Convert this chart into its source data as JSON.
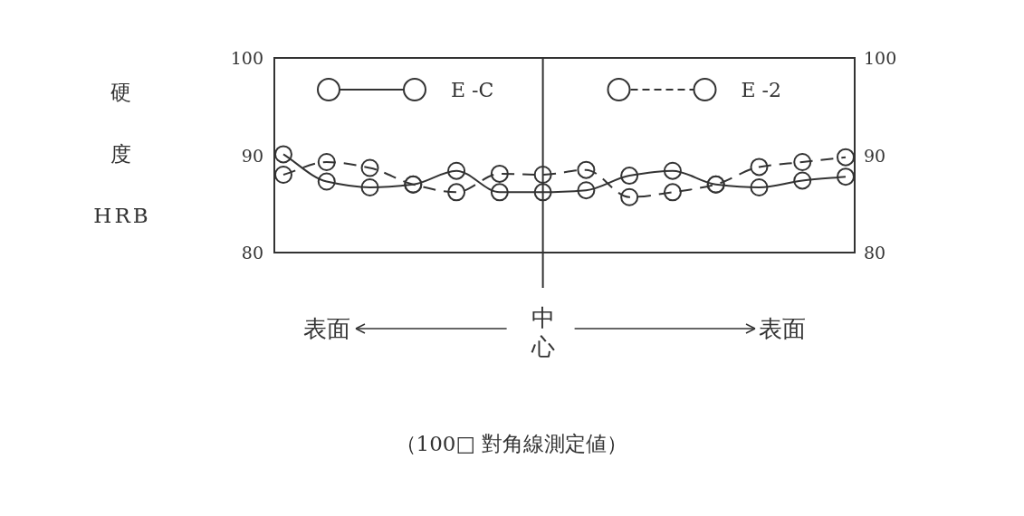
{
  "chart_data": {
    "type": "line",
    "categories": [
      null,
      null,
      null,
      null,
      null,
      null,
      null,
      null,
      null,
      null,
      null,
      null,
      null,
      null
    ],
    "series": [
      {
        "name": "E -C",
        "color": "#333333",
        "line_style": "solid",
        "values": [
          90.1,
          87.3,
          86.7,
          87.0,
          88.4,
          86.2,
          86.2,
          86.4,
          87.9,
          88.4,
          87.0,
          86.7,
          87.4,
          87.8
        ]
      },
      {
        "name": "E -2",
        "color": "#333333",
        "line_style": "dashed",
        "values": [
          88.0,
          89.3,
          88.7,
          87.0,
          86.2,
          88.1,
          88.0,
          88.5,
          85.7,
          86.2,
          87.0,
          88.8,
          89.3,
          89.8
        ]
      }
    ],
    "ylim": [
      80,
      100
    ],
    "yticks": [
      80,
      90,
      100
    ],
    "y2lim": [
      80,
      100
    ],
    "y2ticks": [
      80,
      90,
      100
    ],
    "ylabel": "硬度HRB",
    "marker": "circle",
    "legend": "top",
    "grid": false,
    "annotations": [
      "表面",
      "中心",
      "表面",
      "（100□ 對角線測定値）"
    ]
  }
}
